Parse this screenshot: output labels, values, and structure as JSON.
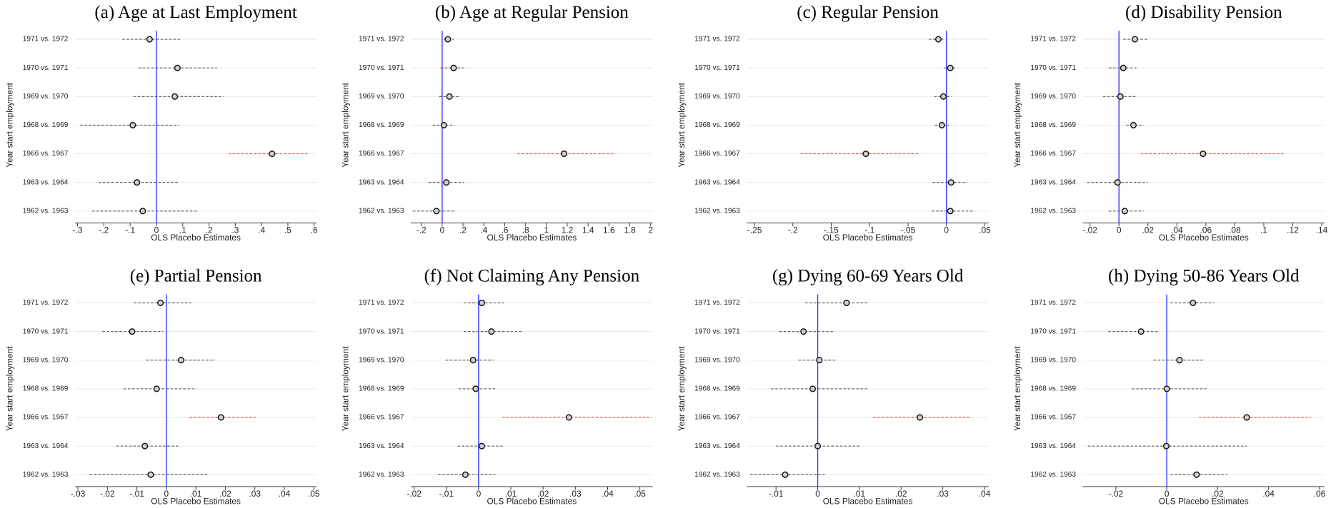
{
  "chart_data": [
    {
      "type": "coefplot",
      "title": "(a) Age at Last Employment",
      "ylabel": "Year start employment",
      "xlabel": "OLS Placebo Estimates",
      "categories": [
        "1971 vs. 1972",
        "1970 vs. 1971",
        "1969 vs. 1970",
        "1968 vs. 1969",
        "1966 vs. 1967",
        "1963 vs. 1964",
        "1962 vs. 1963"
      ],
      "values": [
        -0.026,
        0.08,
        0.07,
        -0.09,
        0.44,
        -0.074,
        -0.052
      ],
      "lower": [
        -0.13,
        -0.068,
        -0.087,
        -0.29,
        0.274,
        -0.22,
        -0.245
      ],
      "upper": [
        0.094,
        0.23,
        0.255,
        0.087,
        0.58,
        0.084,
        0.155
      ],
      "ci_colors": [
        "#555555",
        "#555555",
        "#555555",
        "#555555",
        "#e8483f",
        "#555555",
        "#555555"
      ],
      "marker_color": "#111111",
      "refline": 0,
      "refline_color": "#3b3bff",
      "xlim": [
        -0.31,
        0.61
      ],
      "xticks": [
        {
          "value": -0.3,
          "label": "-.3"
        },
        {
          "value": -0.2,
          "label": "-.2"
        },
        {
          "value": -0.1,
          "label": "-.1"
        },
        0,
        {
          "value": 0.1,
          "label": ".1"
        },
        {
          "value": 0.2,
          "label": ".2"
        },
        {
          "value": 0.3,
          "label": ".3"
        },
        {
          "value": 0.4,
          "label": ".4"
        },
        {
          "value": 0.5,
          "label": ".5"
        },
        {
          "value": 0.6,
          "label": ".6"
        }
      ]
    },
    {
      "type": "coefplot",
      "title": "(b) Age at Regular Pension",
      "ylabel": "Year start employment",
      "xlabel": "OLS Placebo Estimates",
      "categories": [
        "1971 vs. 1972",
        "1970 vs. 1971",
        "1969 vs. 1970",
        "1968 vs. 1969",
        "1966 vs. 1967",
        "1963 vs. 1964",
        "1962 vs. 1963"
      ],
      "values": [
        0.055,
        0.11,
        0.07,
        0.016,
        1.17,
        0.04,
        -0.055
      ],
      "lower": [
        0.016,
        -0.016,
        -0.03,
        -0.09,
        0.72,
        -0.13,
        -0.28
      ],
      "upper": [
        0.11,
        0.21,
        0.17,
        0.12,
        1.65,
        0.21,
        0.13
      ],
      "ci_colors": [
        "#555555",
        "#555555",
        "#555555",
        "#555555",
        "#e8483f",
        "#555555",
        "#555555"
      ],
      "marker_color": "#111111",
      "refline": 0,
      "refline_color": "#3b3bff",
      "xlim": [
        -0.3,
        2.02
      ],
      "xticks": [
        {
          "value": -0.2,
          "label": "-.2"
        },
        0,
        {
          "value": 0.2,
          "label": ".2"
        },
        {
          "value": 0.4,
          "label": ".4"
        },
        {
          "value": 0.6,
          "label": ".6"
        },
        {
          "value": 0.8,
          "label": ".8"
        },
        1,
        1.2,
        1.4,
        1.6,
        1.8,
        2
      ]
    },
    {
      "type": "coefplot",
      "title": "(c) Regular Pension",
      "ylabel": "Year start employment",
      "xlabel": "OLS Placebo Estimates",
      "categories": [
        "1971 vs. 1972",
        "1970 vs. 1971",
        "1969 vs. 1970",
        "1968 vs. 1969",
        "1966 vs. 1967",
        "1963 vs. 1964",
        "1962 vs. 1963"
      ],
      "values": [
        -0.0105,
        0.005,
        -0.004,
        -0.006,
        -0.105,
        0.006,
        0.005
      ],
      "lower": [
        -0.023,
        -0.003,
        -0.016,
        -0.015,
        -0.19,
        -0.018,
        -0.019
      ],
      "upper": [
        -0.004,
        0.012,
        0.007,
        0.003,
        -0.036,
        0.027,
        0.036
      ],
      "ci_colors": [
        "#555555",
        "#555555",
        "#555555",
        "#555555",
        "#e8483f",
        "#555555",
        "#555555"
      ],
      "marker_color": "#111111",
      "refline": 0,
      "refline_color": "#3b3bff",
      "xlim": [
        -0.26,
        0.055
      ],
      "xticks": [
        {
          "value": -0.25,
          "label": "-.25"
        },
        {
          "value": -0.2,
          "label": "-.2"
        },
        {
          "value": -0.15,
          "label": "-.15"
        },
        {
          "value": -0.1,
          "label": "-.1"
        },
        {
          "value": -0.05,
          "label": "-.05"
        },
        0,
        {
          "value": 0.05,
          "label": ".05"
        }
      ]
    },
    {
      "type": "coefplot",
      "title": "(d) Disability Pension",
      "ylabel": "Year start employment",
      "xlabel": "OLS Placebo Estimates",
      "categories": [
        "1971 vs. 1972",
        "1970 vs. 1971",
        "1969 vs. 1970",
        "1968 vs. 1969",
        "1966 vs. 1967",
        "1963 vs. 1964",
        "1962 vs. 1963"
      ],
      "values": [
        0.011,
        0.003,
        0.001,
        0.01,
        0.058,
        -0.001,
        0.004
      ],
      "lower": [
        0.003,
        -0.007,
        -0.011,
        0.005,
        0.015,
        -0.022,
        -0.007
      ],
      "upper": [
        0.02,
        0.012,
        0.012,
        0.017,
        0.115,
        0.02,
        0.017
      ],
      "ci_colors": [
        "#555555",
        "#555555",
        "#555555",
        "#555555",
        "#e8483f",
        "#555555",
        "#555555"
      ],
      "marker_color": "#111111",
      "refline": 0,
      "refline_color": "#3b3bff",
      "xlim": [
        -0.025,
        0.142
      ],
      "xticks": [
        {
          "value": -0.02,
          "label": "-.02"
        },
        0,
        {
          "value": 0.02,
          "label": ".02"
        },
        {
          "value": 0.04,
          "label": ".04"
        },
        {
          "value": 0.06,
          "label": ".06"
        },
        {
          "value": 0.08,
          "label": ".08"
        },
        {
          "value": 0.1,
          "label": ".1"
        },
        {
          "value": 0.12,
          "label": ".12"
        },
        {
          "value": 0.14,
          "label": ".14"
        }
      ]
    },
    {
      "type": "coefplot",
      "title": "(e) Partial Pension",
      "ylabel": "Year start employment",
      "xlabel": "OLS Placebo Estimates",
      "categories": [
        "1971 vs. 1972",
        "1970 vs. 1971",
        "1969 vs. 1970",
        "1968 vs. 1969",
        "1966 vs. 1967",
        "1963 vs. 1964",
        "1962 vs. 1963"
      ],
      "values": [
        -0.002,
        -0.0116,
        0.005,
        -0.0033,
        0.0185,
        -0.0073,
        -0.0053
      ],
      "lower": [
        -0.011,
        -0.0217,
        -0.0068,
        -0.0145,
        0.0079,
        -0.017,
        -0.026
      ],
      "upper": [
        0.0085,
        -0.001,
        0.0165,
        0.0102,
        0.031,
        0.004,
        0.0145
      ],
      "ci_colors": [
        "#555555",
        "#555555",
        "#555555",
        "#555555",
        "#e8483f",
        "#555555",
        "#555555"
      ],
      "marker_color": "#111111",
      "refline": 0,
      "refline_color": "#3b3bff",
      "xlim": [
        -0.031,
        0.051
      ],
      "xticks": [
        {
          "value": -0.03,
          "label": "-.03"
        },
        {
          "value": -0.02,
          "label": "-.02"
        },
        {
          "value": -0.01,
          "label": "-.01"
        },
        0,
        {
          "value": 0.01,
          "label": ".01"
        },
        {
          "value": 0.02,
          "label": ".02"
        },
        {
          "value": 0.03,
          "label": ".03"
        },
        {
          "value": 0.04,
          "label": ".04"
        },
        {
          "value": 0.05,
          "label": ".05"
        }
      ]
    },
    {
      "type": "coefplot",
      "title": "(f) Not Claiming Any Pension",
      "ylabel": "Year start employment",
      "xlabel": "OLS Placebo Estimates",
      "categories": [
        "1971 vs. 1972",
        "1970 vs. 1971",
        "1969 vs. 1970",
        "1968 vs. 1969",
        "1966 vs. 1967",
        "1963 vs. 1964",
        "1962 vs. 1963"
      ],
      "values": [
        0.001,
        0.004,
        -0.0017,
        -0.0009,
        0.028,
        0.001,
        -0.0041
      ],
      "lower": [
        -0.0046,
        -0.0046,
        -0.0102,
        -0.0062,
        0.0073,
        -0.0065,
        -0.0126
      ],
      "upper": [
        0.0078,
        0.0134,
        0.0047,
        0.0052,
        0.0537,
        0.0076,
        0.0052
      ],
      "ci_colors": [
        "#555555",
        "#555555",
        "#555555",
        "#555555",
        "#e8483f",
        "#555555",
        "#555555"
      ],
      "marker_color": "#111111",
      "refline": 0,
      "refline_color": "#3b3bff",
      "xlim": [
        -0.021,
        0.054
      ],
      "xticks": [
        {
          "value": -0.02,
          "label": "-.02"
        },
        {
          "value": -0.01,
          "label": "-.01"
        },
        0,
        {
          "value": 0.01,
          "label": ".01"
        },
        {
          "value": 0.02,
          "label": ".02"
        },
        {
          "value": 0.03,
          "label": ".03"
        },
        {
          "value": 0.04,
          "label": ".04"
        },
        {
          "value": 0.05,
          "label": ".05"
        }
      ]
    },
    {
      "type": "coefplot",
      "title": "(g) Dying 60-69 Years Old",
      "ylabel": "Year start employment",
      "xlabel": "OLS Placebo Estimates",
      "categories": [
        "1971 vs. 1972",
        "1970 vs. 1971",
        "1969 vs. 1970",
        "1968 vs. 1969",
        "1966 vs. 1967",
        "1963 vs. 1964",
        "1962 vs. 1963"
      ],
      "values": [
        0.0069,
        -0.0034,
        0.0004,
        -0.0012,
        0.0245,
        0,
        -0.0078
      ],
      "lower": [
        -0.003,
        -0.0092,
        -0.0046,
        -0.0112,
        0.0133,
        -0.01,
        -0.0162
      ],
      "upper": [
        0.0119,
        0.004,
        0.0043,
        0.0123,
        0.0368,
        0.0103,
        0.0017
      ],
      "ci_colors": [
        "#555555",
        "#555555",
        "#555555",
        "#555555",
        "#e8483f",
        "#555555",
        "#555555"
      ],
      "marker_color": "#111111",
      "refline": 0,
      "refline_color": "#3b3bff",
      "xlim": [
        -0.017,
        0.041
      ],
      "xticks": [
        {
          "value": -0.01,
          "label": "-.01"
        },
        0,
        {
          "value": 0.01,
          "label": ".01"
        },
        {
          "value": 0.02,
          "label": ".02"
        },
        {
          "value": 0.03,
          "label": ".03"
        },
        {
          "value": 0.04,
          "label": ".04"
        }
      ]
    },
    {
      "type": "coefplot",
      "title": "(h) Dying 50-86 Years Old",
      "ylabel": "Year start employment",
      "xlabel": "OLS Placebo Estimates",
      "categories": [
        "1971 vs. 1972",
        "1970 vs. 1971",
        "1969 vs. 1970",
        "1968 vs. 1969",
        "1966 vs. 1967",
        "1963 vs. 1964",
        "1962 vs. 1963"
      ],
      "values": [
        0.0103,
        -0.0101,
        0.005,
        0,
        0.0314,
        -0.0002,
        0.0117
      ],
      "lower": [
        0.0014,
        -0.023,
        -0.0052,
        -0.0137,
        0.0126,
        -0.031,
        0.0014
      ],
      "upper": [
        0.0185,
        -0.0029,
        0.0143,
        0.0156,
        0.0567,
        0.0314,
        0.0238
      ],
      "ci_colors": [
        "#555555",
        "#555555",
        "#555555",
        "#555555",
        "#e8483f",
        "#555555",
        "#555555"
      ],
      "marker_color": "#111111",
      "refline": 0,
      "refline_color": "#3b3bff",
      "xlim": [
        -0.033,
        0.062
      ],
      "xticks": [
        {
          "value": -0.02,
          "label": "-.02"
        },
        0,
        {
          "value": 0.02,
          "label": ".02"
        },
        {
          "value": 0.04,
          "label": ".04"
        },
        {
          "value": 0.06,
          "label": ".06"
        }
      ]
    }
  ]
}
